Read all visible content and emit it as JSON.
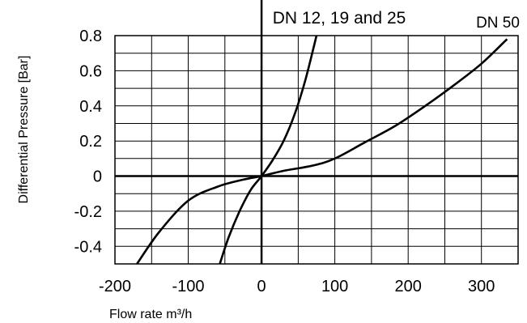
{
  "chart_data": {
    "type": "line",
    "xlabel": "Flow rate m³/h",
    "ylabel": "Differential Pressure [Bar]",
    "xlim": [
      -200,
      350
    ],
    "ylim": [
      -0.5,
      0.8
    ],
    "x_ticks": [
      -200,
      -100,
      0,
      100,
      200,
      300
    ],
    "x_tick_labels": [
      "-200",
      "-100",
      "0",
      "100",
      "200",
      "300"
    ],
    "y_ticks": [
      0.8,
      0.6,
      0.4,
      0.2,
      0,
      -0.2,
      -0.4
    ],
    "y_tick_labels": [
      "0.8",
      "0.6",
      "0.4",
      "0.2",
      "0",
      "-0.2",
      "-0.4"
    ],
    "grid": true,
    "x_grid_step": 50,
    "y_grid_step": 0.1,
    "annotations": [
      {
        "text": "DN 12, 19 and 25",
        "x": 40,
        "y": 0.85
      },
      {
        "text": "DN 50",
        "x": 326,
        "y": 0.84
      }
    ],
    "series": [
      {
        "name": "DN 12, 19 and 25",
        "x": [
          -57,
          -45,
          -30,
          -15,
          0,
          15,
          30,
          45,
          60,
          75
        ],
        "y": [
          -0.5,
          -0.35,
          -0.2,
          -0.08,
          0,
          0.09,
          0.2,
          0.35,
          0.55,
          0.8
        ]
      },
      {
        "name": "DN 50",
        "x": [
          -170,
          -140,
          -100,
          -60,
          -25,
          0,
          30,
          70,
          100,
          140,
          180,
          220,
          260,
          300,
          335
        ],
        "y": [
          -0.5,
          -0.32,
          -0.14,
          -0.06,
          -0.02,
          0,
          0.03,
          0.06,
          0.1,
          0.19,
          0.28,
          0.39,
          0.51,
          0.64,
          0.78
        ]
      }
    ]
  }
}
